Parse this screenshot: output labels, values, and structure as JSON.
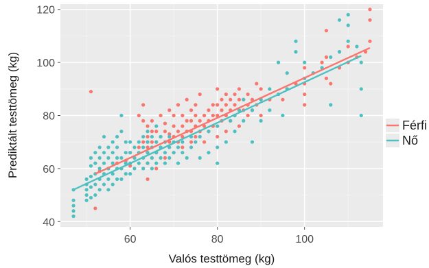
{
  "chart_data": {
    "type": "scatter",
    "title": "",
    "xlabel": "Valós testtömeg (kg)",
    "ylabel": "Prediktált testtömeg (kg)",
    "xlim": [
      44,
      118
    ],
    "ylim": [
      38,
      122
    ],
    "x_ticks": [
      60,
      80,
      100
    ],
    "y_ticks": [
      40,
      60,
      80,
      100,
      120
    ],
    "grid": true,
    "legend_position": "right",
    "series": [
      {
        "name": "Férfi",
        "color": "#f8766d",
        "points": [
          [
            51,
            89
          ],
          [
            52,
            45
          ],
          [
            53,
            59
          ],
          [
            55,
            60
          ],
          [
            57,
            62
          ],
          [
            59,
            63
          ],
          [
            60,
            61
          ],
          [
            61,
            64
          ],
          [
            62,
            80
          ],
          [
            63,
            84
          ],
          [
            63,
            78
          ],
          [
            63,
            70
          ],
          [
            64,
            56
          ],
          [
            64,
            62
          ],
          [
            64,
            66
          ],
          [
            64,
            68
          ],
          [
            64,
            72
          ],
          [
            64,
            76
          ],
          [
            65,
            64
          ],
          [
            65,
            70
          ],
          [
            65,
            74
          ],
          [
            65,
            78
          ],
          [
            66,
            60
          ],
          [
            66,
            66
          ],
          [
            66,
            70
          ],
          [
            66,
            74
          ],
          [
            67,
            68
          ],
          [
            67,
            72
          ],
          [
            67,
            80
          ],
          [
            68,
            64
          ],
          [
            68,
            70
          ],
          [
            68,
            74
          ],
          [
            68,
            77
          ],
          [
            69,
            70
          ],
          [
            69,
            73
          ],
          [
            69,
            82
          ],
          [
            70,
            66
          ],
          [
            70,
            72
          ],
          [
            70,
            76
          ],
          [
            70,
            80
          ],
          [
            71,
            84
          ],
          [
            71,
            70
          ],
          [
            71,
            74
          ],
          [
            72,
            68
          ],
          [
            72,
            72
          ],
          [
            72,
            76
          ],
          [
            72,
            80
          ],
          [
            73,
            74
          ],
          [
            73,
            78
          ],
          [
            73,
            86
          ],
          [
            74,
            70
          ],
          [
            74,
            74
          ],
          [
            74,
            78
          ],
          [
            74,
            82
          ],
          [
            75,
            72
          ],
          [
            75,
            76
          ],
          [
            75,
            80
          ],
          [
            75,
            84
          ],
          [
            76,
            74
          ],
          [
            76,
            78
          ],
          [
            76,
            88
          ],
          [
            77,
            70
          ],
          [
            77,
            76
          ],
          [
            77,
            80
          ],
          [
            78,
            74
          ],
          [
            78,
            78
          ],
          [
            78,
            82
          ],
          [
            79,
            76
          ],
          [
            79,
            80
          ],
          [
            79,
            84
          ],
          [
            80,
            72
          ],
          [
            80,
            76
          ],
          [
            80,
            80
          ],
          [
            80,
            84
          ],
          [
            80,
            90
          ],
          [
            81,
            78
          ],
          [
            81,
            82
          ],
          [
            81,
            86
          ],
          [
            82,
            74
          ],
          [
            82,
            80
          ],
          [
            82,
            84
          ],
          [
            82,
            88
          ],
          [
            83,
            78
          ],
          [
            83,
            82
          ],
          [
            83,
            86
          ],
          [
            84,
            80
          ],
          [
            84,
            84
          ],
          [
            84,
            88
          ],
          [
            85,
            76
          ],
          [
            85,
            82
          ],
          [
            85,
            86
          ],
          [
            85,
            90
          ],
          [
            86,
            82
          ],
          [
            86,
            86
          ],
          [
            87,
            80
          ],
          [
            87,
            84
          ],
          [
            87,
            88
          ],
          [
            88,
            82
          ],
          [
            88,
            86
          ],
          [
            89,
            84
          ],
          [
            89,
            92
          ],
          [
            90,
            80
          ],
          [
            90,
            86
          ],
          [
            90,
            90
          ],
          [
            92,
            86
          ],
          [
            94,
            88
          ],
          [
            95,
            86
          ],
          [
            96,
            90
          ],
          [
            98,
            92
          ],
          [
            100,
            84
          ],
          [
            100,
            88
          ],
          [
            100,
            92
          ],
          [
            100,
            98
          ],
          [
            102,
            96
          ],
          [
            104,
            100
          ],
          [
            105,
            94
          ],
          [
            105,
            102
          ],
          [
            105,
            112
          ],
          [
            106,
            92
          ],
          [
            108,
            98
          ],
          [
            108,
            104
          ],
          [
            110,
            100
          ],
          [
            110,
            106
          ],
          [
            112,
            102
          ],
          [
            114,
            104
          ],
          [
            115,
            108
          ],
          [
            115,
            116
          ],
          [
            115,
            120
          ],
          [
            58,
            60
          ],
          [
            60,
            66
          ],
          [
            62,
            68
          ],
          [
            64,
            70
          ]
        ]
      },
      {
        "name": "Nő",
        "color": "#4ec0c2",
        "points": [
          [
            47,
            42
          ],
          [
            47,
            44
          ],
          [
            47,
            46
          ],
          [
            47,
            48
          ],
          [
            47,
            52
          ],
          [
            50,
            48
          ],
          [
            50,
            50
          ],
          [
            50,
            52
          ],
          [
            50,
            54
          ],
          [
            50,
            56
          ],
          [
            51,
            49
          ],
          [
            51,
            53
          ],
          [
            51,
            57
          ],
          [
            51,
            61
          ],
          [
            51,
            64
          ],
          [
            52,
            50
          ],
          [
            52,
            54
          ],
          [
            52,
            58
          ],
          [
            52,
            62
          ],
          [
            52,
            66
          ],
          [
            53,
            52
          ],
          [
            53,
            56
          ],
          [
            53,
            60
          ],
          [
            53,
            64
          ],
          [
            53,
            68
          ],
          [
            54,
            54
          ],
          [
            54,
            58
          ],
          [
            54,
            62
          ],
          [
            54,
            66
          ],
          [
            54,
            72
          ],
          [
            55,
            52
          ],
          [
            55,
            56
          ],
          [
            55,
            60
          ],
          [
            55,
            64
          ],
          [
            55,
            68
          ],
          [
            56,
            54
          ],
          [
            56,
            58
          ],
          [
            56,
            62
          ],
          [
            56,
            66
          ],
          [
            56,
            70
          ],
          [
            57,
            56
          ],
          [
            57,
            60
          ],
          [
            57,
            64
          ],
          [
            57,
            68
          ],
          [
            57,
            72
          ],
          [
            58,
            56
          ],
          [
            58,
            60
          ],
          [
            58,
            64
          ],
          [
            58,
            74
          ],
          [
            58,
            80
          ],
          [
            59,
            58
          ],
          [
            59,
            62
          ],
          [
            59,
            66
          ],
          [
            59,
            70
          ],
          [
            60,
            58
          ],
          [
            60,
            62
          ],
          [
            60,
            66
          ],
          [
            60,
            70
          ],
          [
            61,
            60
          ],
          [
            61,
            64
          ],
          [
            61,
            68
          ],
          [
            62,
            62
          ],
          [
            62,
            66
          ],
          [
            62,
            70
          ],
          [
            63,
            60
          ],
          [
            63,
            64
          ],
          [
            63,
            68
          ],
          [
            63,
            72
          ],
          [
            64,
            62
          ],
          [
            64,
            66
          ],
          [
            64,
            70
          ],
          [
            64,
            74
          ],
          [
            65,
            60
          ],
          [
            65,
            64
          ],
          [
            65,
            68
          ],
          [
            65,
            72
          ],
          [
            66,
            62
          ],
          [
            66,
            66
          ],
          [
            66,
            70
          ],
          [
            66,
            76
          ],
          [
            67,
            64
          ],
          [
            67,
            68
          ],
          [
            67,
            72
          ],
          [
            68,
            62
          ],
          [
            68,
            66
          ],
          [
            68,
            70
          ],
          [
            69,
            64
          ],
          [
            69,
            68
          ],
          [
            69,
            72
          ],
          [
            70,
            66
          ],
          [
            70,
            70
          ],
          [
            71,
            62
          ],
          [
            71,
            68
          ],
          [
            72,
            66
          ],
          [
            72,
            70
          ],
          [
            73,
            64
          ],
          [
            74,
            68
          ],
          [
            74,
            72
          ],
          [
            75,
            70
          ],
          [
            76,
            64
          ],
          [
            76,
            72
          ],
          [
            78,
            66
          ],
          [
            78,
            74
          ],
          [
            80,
            62
          ],
          [
            80,
            68
          ],
          [
            80,
            76
          ],
          [
            82,
            70
          ],
          [
            83,
            78
          ],
          [
            84,
            74
          ],
          [
            84,
            80
          ],
          [
            85,
            82
          ],
          [
            86,
            78
          ],
          [
            86,
            86
          ],
          [
            88,
            70
          ],
          [
            88,
            82
          ],
          [
            90,
            78
          ],
          [
            90,
            86
          ],
          [
            92,
            82
          ],
          [
            92,
            90
          ],
          [
            94,
            88
          ],
          [
            94,
            100
          ],
          [
            95,
            80
          ],
          [
            96,
            90
          ],
          [
            96,
            96
          ],
          [
            98,
            104
          ],
          [
            98,
            108
          ],
          [
            100,
            94
          ],
          [
            100,
            100
          ],
          [
            102,
            96
          ],
          [
            104,
            98
          ],
          [
            106,
            84
          ],
          [
            106,
            102
          ],
          [
            108,
            104
          ],
          [
            108,
            116
          ],
          [
            110,
            108
          ],
          [
            110,
            114
          ],
          [
            110,
            118
          ],
          [
            113,
            80
          ],
          [
            113,
            90
          ],
          [
            113,
            100
          ],
          [
            112,
            106
          ]
        ]
      }
    ],
    "regression_lines": [
      {
        "series": "Férfi",
        "color": "#f8766d",
        "x": [
          52,
          115
        ],
        "y": [
          58,
          105.5
        ]
      },
      {
        "series": "Nő",
        "color": "#4ec0c2",
        "x": [
          47,
          113
        ],
        "y": [
          52,
          102.5
        ]
      }
    ]
  }
}
